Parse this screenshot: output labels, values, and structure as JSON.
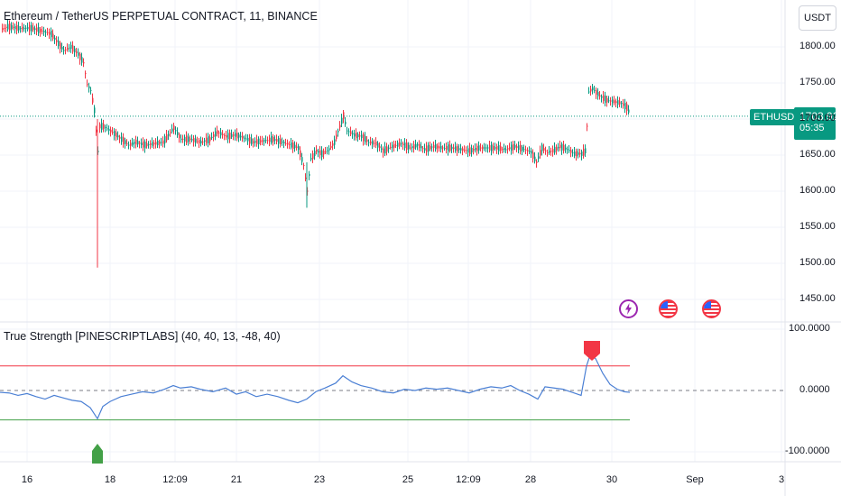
{
  "header": {
    "title": "Ethereum / TetherUS PERPETUAL CONTRACT, 11, BINANCE",
    "currency": "USDT"
  },
  "indicator": {
    "title": "True Strength [PINESCRIPTLABS] (40, 40, 13, -48, 40)",
    "axis_labels": [
      "100.0000",
      "0.0000",
      "-100.0000"
    ]
  },
  "price_axis": [
    "1800.00",
    "1750.00",
    "1700.00",
    "1650.00",
    "1600.00",
    "1550.00",
    "1500.00",
    "1450.00"
  ],
  "last_price": {
    "symbol": "ETHUSDT.P",
    "price": "1703.92",
    "countdown": "05:35"
  },
  "time_axis": [
    "16",
    "18",
    "12:09",
    "21",
    "23",
    "25",
    "12:09",
    "28",
    "30",
    "Sep",
    "3"
  ],
  "events": [
    {
      "icon": "lightning-event-icon"
    },
    {
      "icon": "us-flag-event-icon"
    },
    {
      "icon": "us-flag-event-icon"
    }
  ],
  "colors": {
    "up": "#089981",
    "down": "#f23645",
    "tsi_line": "#4a7fd4",
    "upper_level": "#f23645",
    "lower_level": "#43a047",
    "buy_marker": "#43a047",
    "sell_marker": "#f23645"
  },
  "chart_data": [
    {
      "type": "candlestick",
      "x": [
        "Aug 16",
        "Aug 17",
        "Aug 17 12:09",
        "Aug 18",
        "Aug 18 12:09",
        "Aug 19",
        "Aug 20",
        "Aug 21",
        "Aug 22",
        "Aug 23",
        "Aug 24",
        "Aug 25",
        "Aug 26",
        "Aug 27",
        "Aug 28",
        "Aug 29",
        "Aug 29 12:09",
        "Aug 30"
      ],
      "close": [
        1826,
        1812,
        1760,
        1672,
        1668,
        1666,
        1672,
        1660,
        1648,
        1675,
        1668,
        1660,
        1662,
        1660,
        1660,
        1650,
        1734,
        1704
      ],
      "ylim": [
        1430,
        1830
      ],
      "last_price": 1703.92
    },
    {
      "type": "line",
      "name": "True Strength",
      "x": [
        "Aug 16",
        "Aug 17",
        "Aug 17 12:09",
        "Aug 18",
        "Aug 19",
        "Aug 20",
        "Aug 21",
        "Aug 22",
        "Aug 23",
        "Aug 24",
        "Aug 25",
        "Aug 26",
        "Aug 27",
        "Aug 28",
        "Aug 29",
        "Aug 29 12:09",
        "Aug 30"
      ],
      "values": [
        -5,
        -10,
        -45,
        -8,
        3,
        5,
        0,
        -14,
        20,
        0,
        4,
        1,
        6,
        -6,
        8,
        75,
        -3
      ],
      "levels": {
        "upper": 40,
        "lower": -48
      },
      "ylim": [
        -110,
        110
      ]
    }
  ]
}
